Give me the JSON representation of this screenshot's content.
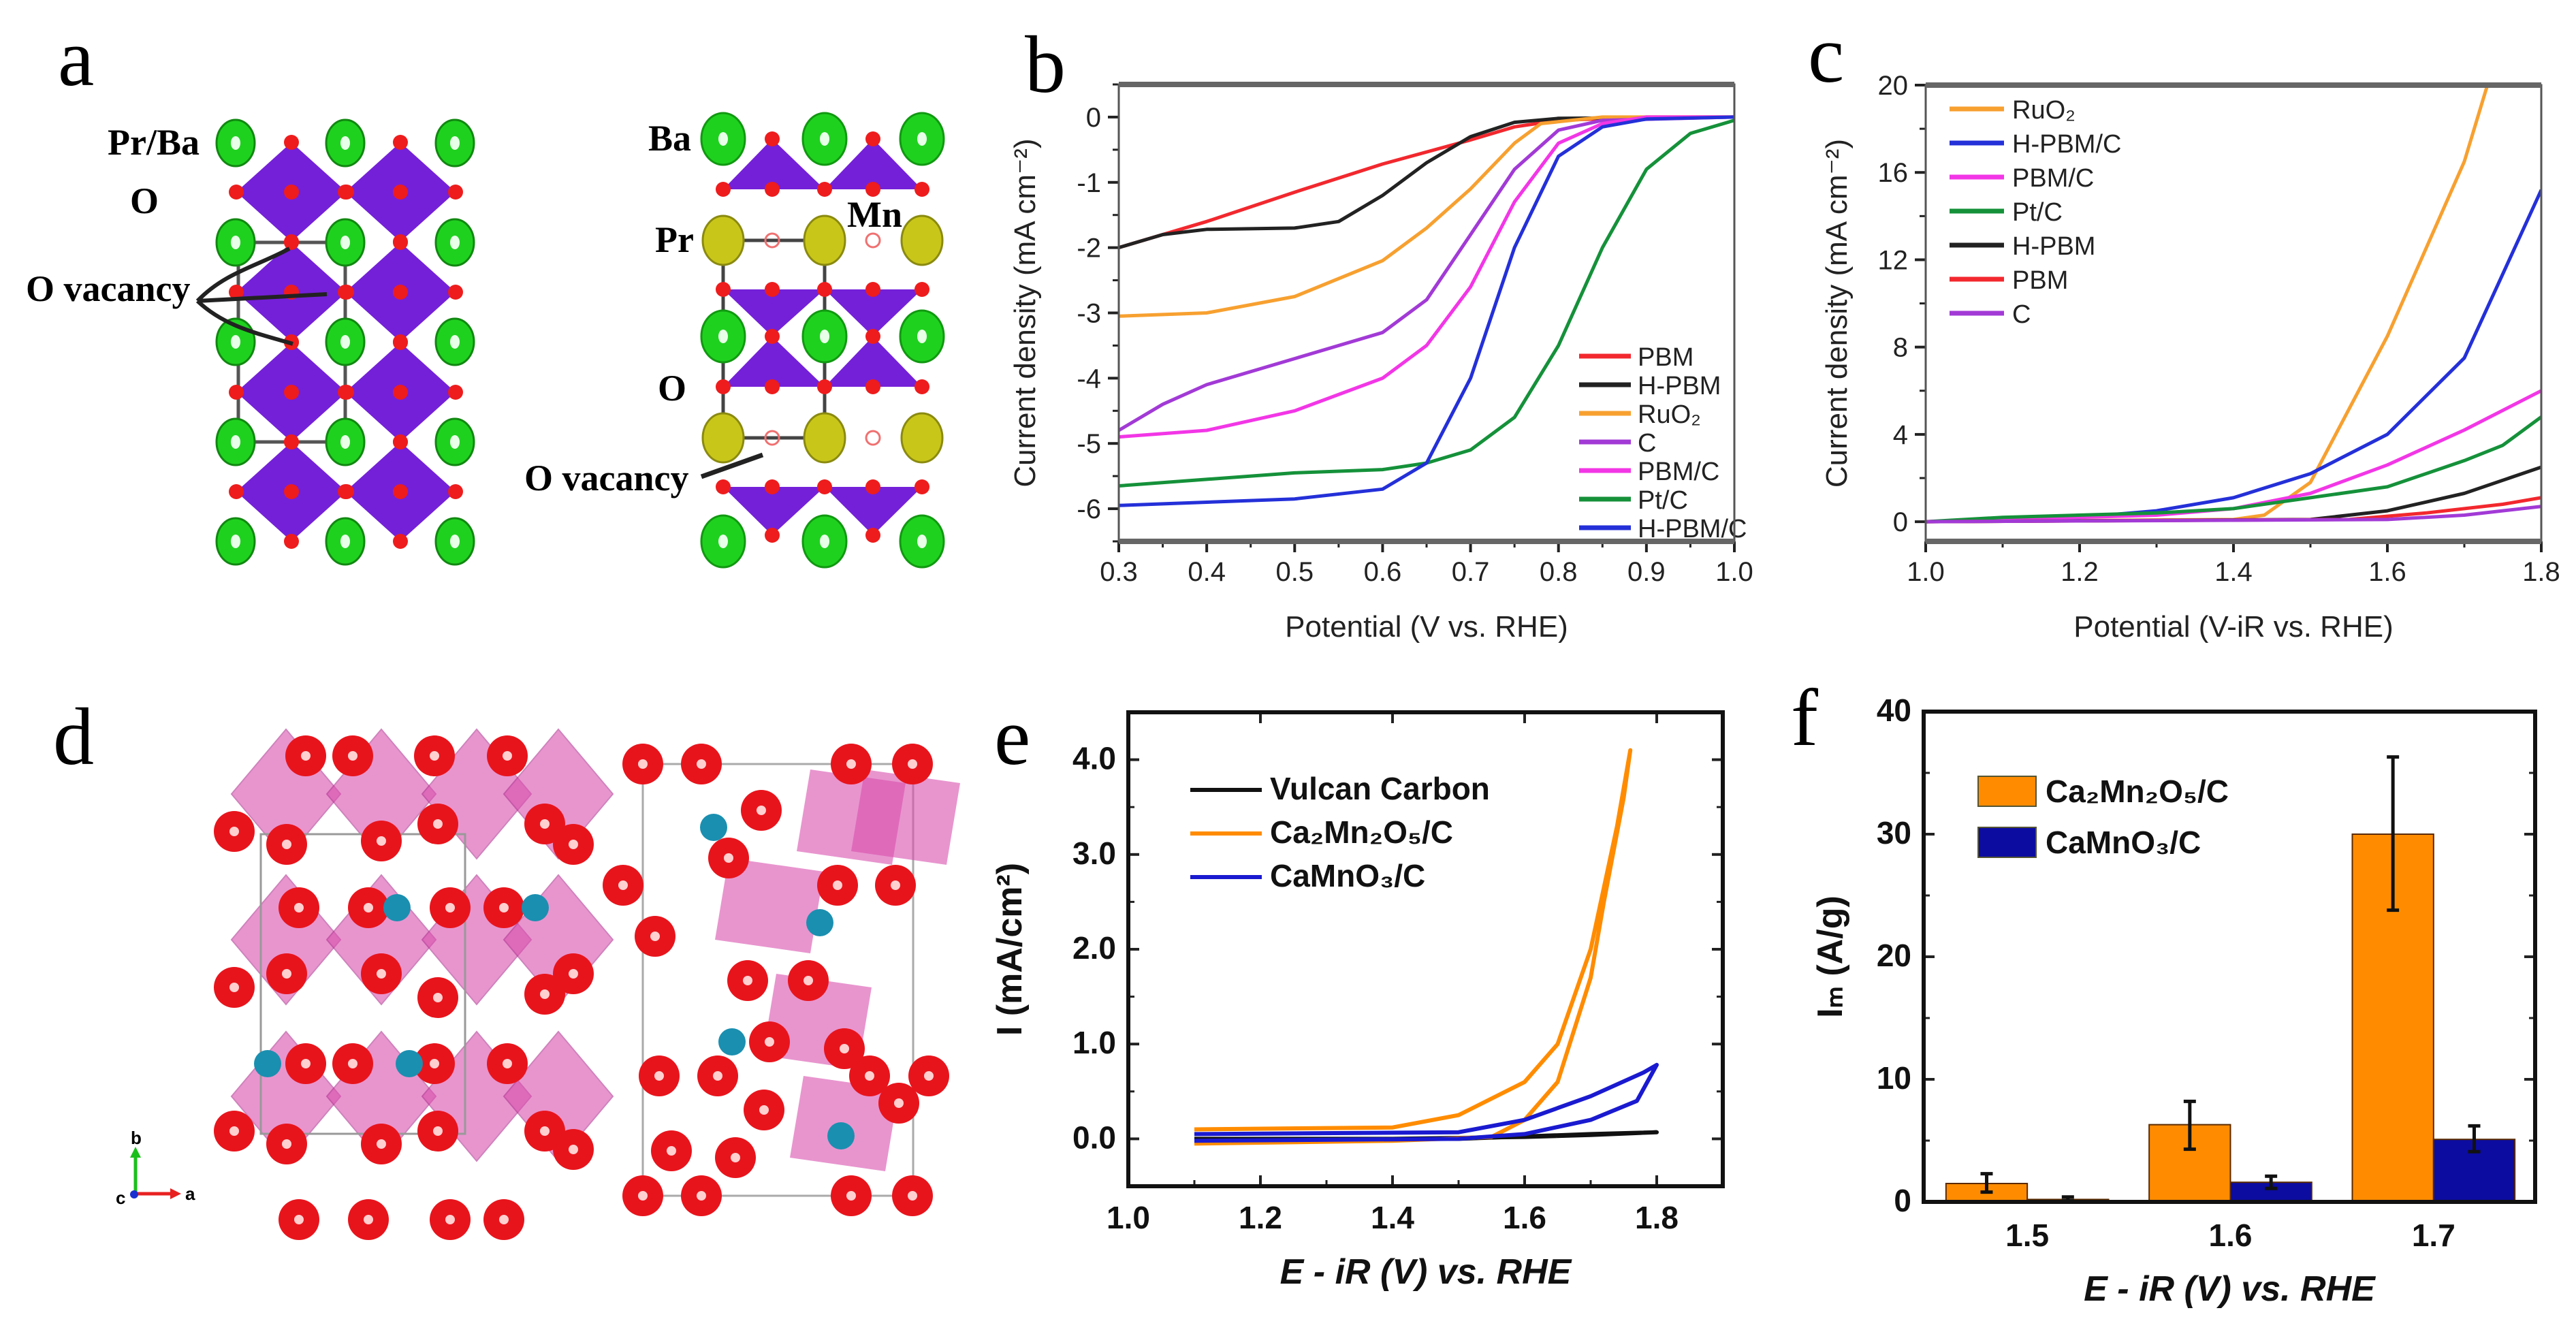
{
  "panel_labels": {
    "a": "a",
    "b": "b",
    "c": "c",
    "d": "d",
    "e": "e",
    "f": "f"
  },
  "structure_a": {
    "labels": {
      "pr_ba": "Pr/Ba",
      "o_left": "O",
      "o_vacancy_left": "O vacancy",
      "ba": "Ba",
      "mn": "Mn",
      "pr": "Pr",
      "o_right": "O",
      "o_vacancy_right": "O vacancy"
    },
    "colors": {
      "ba": "#1fd11f",
      "pr": "#c9c61a",
      "o": "#ee1c1c",
      "polyhedra": "#7420d8"
    }
  },
  "structure_d": {
    "axes": {
      "b": "b",
      "a": "a",
      "c": "c"
    },
    "colors": {
      "o": "#e8141c",
      "ca": "#1a8fb0",
      "polyhedra": "#d94fae"
    }
  },
  "chart_data": [
    {
      "id": "b",
      "type": "line",
      "xlabel": "Potential (V vs. RHE)",
      "ylabel": "Current density (mA cm⁻²)",
      "xlim": [
        0.3,
        1.0
      ],
      "ylim": [
        -6.5,
        0.5
      ],
      "xticks": [
        "0.3",
        "0.4",
        "0.5",
        "0.6",
        "0.7",
        "0.8",
        "0.9",
        "1.0"
      ],
      "yticks": [
        "0",
        "-1",
        "-2",
        "-3",
        "-4",
        "-5",
        "-6"
      ],
      "legend_position": "bottom-right",
      "series": [
        {
          "name": "PBM",
          "color": "#f2282e",
          "x": [
            0.3,
            0.4,
            0.5,
            0.6,
            0.7,
            0.75,
            0.8,
            0.9,
            1.0
          ],
          "y": [
            -2.0,
            -1.6,
            -1.15,
            -0.72,
            -0.35,
            -0.15,
            -0.05,
            0,
            0
          ]
        },
        {
          "name": "H-PBM",
          "color": "#222222",
          "x": [
            0.3,
            0.35,
            0.4,
            0.5,
            0.55,
            0.6,
            0.65,
            0.7,
            0.75,
            0.8,
            1.0
          ],
          "y": [
            -2.0,
            -1.8,
            -1.72,
            -1.7,
            -1.6,
            -1.2,
            -0.7,
            -0.3,
            -0.08,
            -0.02,
            0
          ]
        },
        {
          "name": "RuO₂",
          "color": "#f7a030",
          "x": [
            0.3,
            0.4,
            0.5,
            0.6,
            0.65,
            0.7,
            0.75,
            0.78,
            0.85,
            1.0
          ],
          "y": [
            -3.05,
            -3.0,
            -2.75,
            -2.2,
            -1.7,
            -1.1,
            -0.4,
            -0.1,
            0,
            0
          ]
        },
        {
          "name": "C",
          "color": "#a23ad6",
          "x": [
            0.3,
            0.35,
            0.4,
            0.5,
            0.6,
            0.65,
            0.7,
            0.75,
            0.8,
            0.85,
            1.0
          ],
          "y": [
            -4.8,
            -4.4,
            -4.1,
            -3.7,
            -3.3,
            -2.8,
            -1.8,
            -0.8,
            -0.2,
            -0.05,
            0
          ]
        },
        {
          "name": "PBM/C",
          "color": "#f236e6",
          "x": [
            0.3,
            0.4,
            0.5,
            0.6,
            0.65,
            0.7,
            0.75,
            0.8,
            0.85,
            0.9,
            1.0
          ],
          "y": [
            -4.9,
            -4.8,
            -4.5,
            -4.0,
            -3.5,
            -2.6,
            -1.3,
            -0.4,
            -0.1,
            0,
            0
          ]
        },
        {
          "name": "Pt/C",
          "color": "#15913a",
          "x": [
            0.3,
            0.4,
            0.5,
            0.6,
            0.65,
            0.7,
            0.75,
            0.8,
            0.85,
            0.9,
            0.95,
            1.0
          ],
          "y": [
            -5.65,
            -5.55,
            -5.45,
            -5.4,
            -5.3,
            -5.1,
            -4.6,
            -3.5,
            -2.0,
            -0.8,
            -0.25,
            -0.05
          ]
        },
        {
          "name": "H-PBM/C",
          "color": "#2430d8",
          "x": [
            0.3,
            0.4,
            0.5,
            0.6,
            0.65,
            0.7,
            0.75,
            0.8,
            0.85,
            0.9,
            1.0
          ],
          "y": [
            -5.95,
            -5.9,
            -5.85,
            -5.7,
            -5.3,
            -4.0,
            -2.0,
            -0.6,
            -0.15,
            -0.03,
            0
          ]
        }
      ]
    },
    {
      "id": "c",
      "type": "line",
      "xlabel": "Potential (V-iR vs. RHE)",
      "ylabel": "Current density (mA cm⁻²)",
      "xlim": [
        1.0,
        1.8
      ],
      "ylim": [
        -0.9,
        20
      ],
      "xticks": [
        "1.0",
        "1.2",
        "1.4",
        "1.6",
        "1.8"
      ],
      "yticks": [
        "0",
        "4",
        "8",
        "12",
        "16",
        "20"
      ],
      "legend_position": "top-left",
      "series": [
        {
          "name": "RuO₂",
          "color": "#f7a030",
          "x": [
            1.0,
            1.4,
            1.44,
            1.5,
            1.6,
            1.7,
            1.73
          ],
          "y": [
            0,
            0.1,
            0.3,
            1.8,
            8.5,
            16.5,
            20
          ]
        },
        {
          "name": "H-PBM/C",
          "color": "#2430d8",
          "x": [
            1.0,
            1.2,
            1.3,
            1.4,
            1.5,
            1.6,
            1.7,
            1.8
          ],
          "y": [
            0,
            0.2,
            0.5,
            1.1,
            2.2,
            4.0,
            7.5,
            15.2
          ]
        },
        {
          "name": "PBM/C",
          "color": "#f236e6",
          "x": [
            1.0,
            1.3,
            1.4,
            1.5,
            1.6,
            1.7,
            1.8
          ],
          "y": [
            0,
            0.3,
            0.6,
            1.3,
            2.6,
            4.2,
            6.0
          ]
        },
        {
          "name": "Pt/C",
          "color": "#15913a",
          "x": [
            1.0,
            1.1,
            1.3,
            1.4,
            1.5,
            1.6,
            1.7,
            1.75,
            1.8
          ],
          "y": [
            0,
            0.2,
            0.4,
            0.6,
            1.1,
            1.6,
            2.8,
            3.5,
            4.8
          ]
        },
        {
          "name": "H-PBM",
          "color": "#222222",
          "x": [
            1.0,
            1.5,
            1.6,
            1.7,
            1.8
          ],
          "y": [
            0,
            0.1,
            0.5,
            1.3,
            2.5
          ]
        },
        {
          "name": "PBM",
          "color": "#f2282e",
          "x": [
            1.0,
            1.55,
            1.65,
            1.75,
            1.8
          ],
          "y": [
            0,
            0.1,
            0.4,
            0.8,
            1.1
          ]
        },
        {
          "name": "C",
          "color": "#a23ad6",
          "x": [
            1.0,
            1.6,
            1.7,
            1.8
          ],
          "y": [
            0,
            0.1,
            0.3,
            0.7
          ]
        }
      ]
    },
    {
      "id": "e",
      "type": "line",
      "xlabel": "E - iR (V) vs. RHE",
      "ylabel": "I (mA/cm²)",
      "xlim": [
        1.0,
        1.9
      ],
      "ylim": [
        -0.5,
        4.5
      ],
      "xticks": [
        "1.0",
        "1.2",
        "1.4",
        "1.6",
        "1.8"
      ],
      "yticks": [
        "0.0",
        "1.0",
        "2.0",
        "3.0",
        "4.0"
      ],
      "legend_position": "top-left",
      "series": [
        {
          "name": "Vulcan Carbon",
          "color": "#111111",
          "x": [
            1.1,
            1.4,
            1.6,
            1.7,
            1.8,
            1.7,
            1.5,
            1.1
          ],
          "y": [
            0.0,
            0.0,
            0.02,
            0.04,
            0.07,
            0.05,
            0.0,
            -0.01
          ]
        },
        {
          "name": "Ca₂Mn₂O₅/C",
          "color": "#ff8c00",
          "x": [
            1.1,
            1.4,
            1.5,
            1.6,
            1.65,
            1.7,
            1.74,
            1.76,
            1.75,
            1.72,
            1.7,
            1.65,
            1.6,
            1.55,
            1.4,
            1.1
          ],
          "y": [
            0.1,
            0.12,
            0.25,
            0.6,
            1.0,
            2.0,
            3.3,
            4.1,
            3.6,
            2.5,
            1.7,
            0.6,
            0.2,
            0.02,
            -0.02,
            -0.05
          ]
        },
        {
          "name": "CaMnO₃/C",
          "color": "#1a1ad0",
          "x": [
            1.1,
            1.5,
            1.6,
            1.7,
            1.78,
            1.8,
            1.77,
            1.7,
            1.6,
            1.5,
            1.1
          ],
          "y": [
            0.05,
            0.07,
            0.2,
            0.45,
            0.7,
            0.78,
            0.4,
            0.2,
            0.05,
            0.0,
            -0.02
          ]
        }
      ]
    },
    {
      "id": "f",
      "type": "bar",
      "xlabel": "E - iR (V) vs. RHE",
      "ylabel": "Iₘ (A/g)",
      "categories": [
        "1.5",
        "1.6",
        "1.7"
      ],
      "ylim": [
        0,
        40
      ],
      "yticks": [
        "0",
        "10",
        "20",
        "30",
        "40"
      ],
      "legend_position": "top-left",
      "series": [
        {
          "name": "Ca₂Mn₂O₅/C",
          "color": "#ff8c00",
          "values": [
            1.5,
            6.3,
            30.0
          ],
          "err_low": [
            0.8,
            4.3,
            23.8
          ],
          "err_high": [
            2.3,
            8.2,
            36.3
          ]
        },
        {
          "name": "CaMnO₃/C",
          "color": "#0c0ca0",
          "values": [
            0.2,
            1.6,
            5.1
          ],
          "err_low": [
            0.1,
            1.1,
            4.1
          ],
          "err_high": [
            0.4,
            2.1,
            6.2
          ]
        }
      ]
    }
  ]
}
